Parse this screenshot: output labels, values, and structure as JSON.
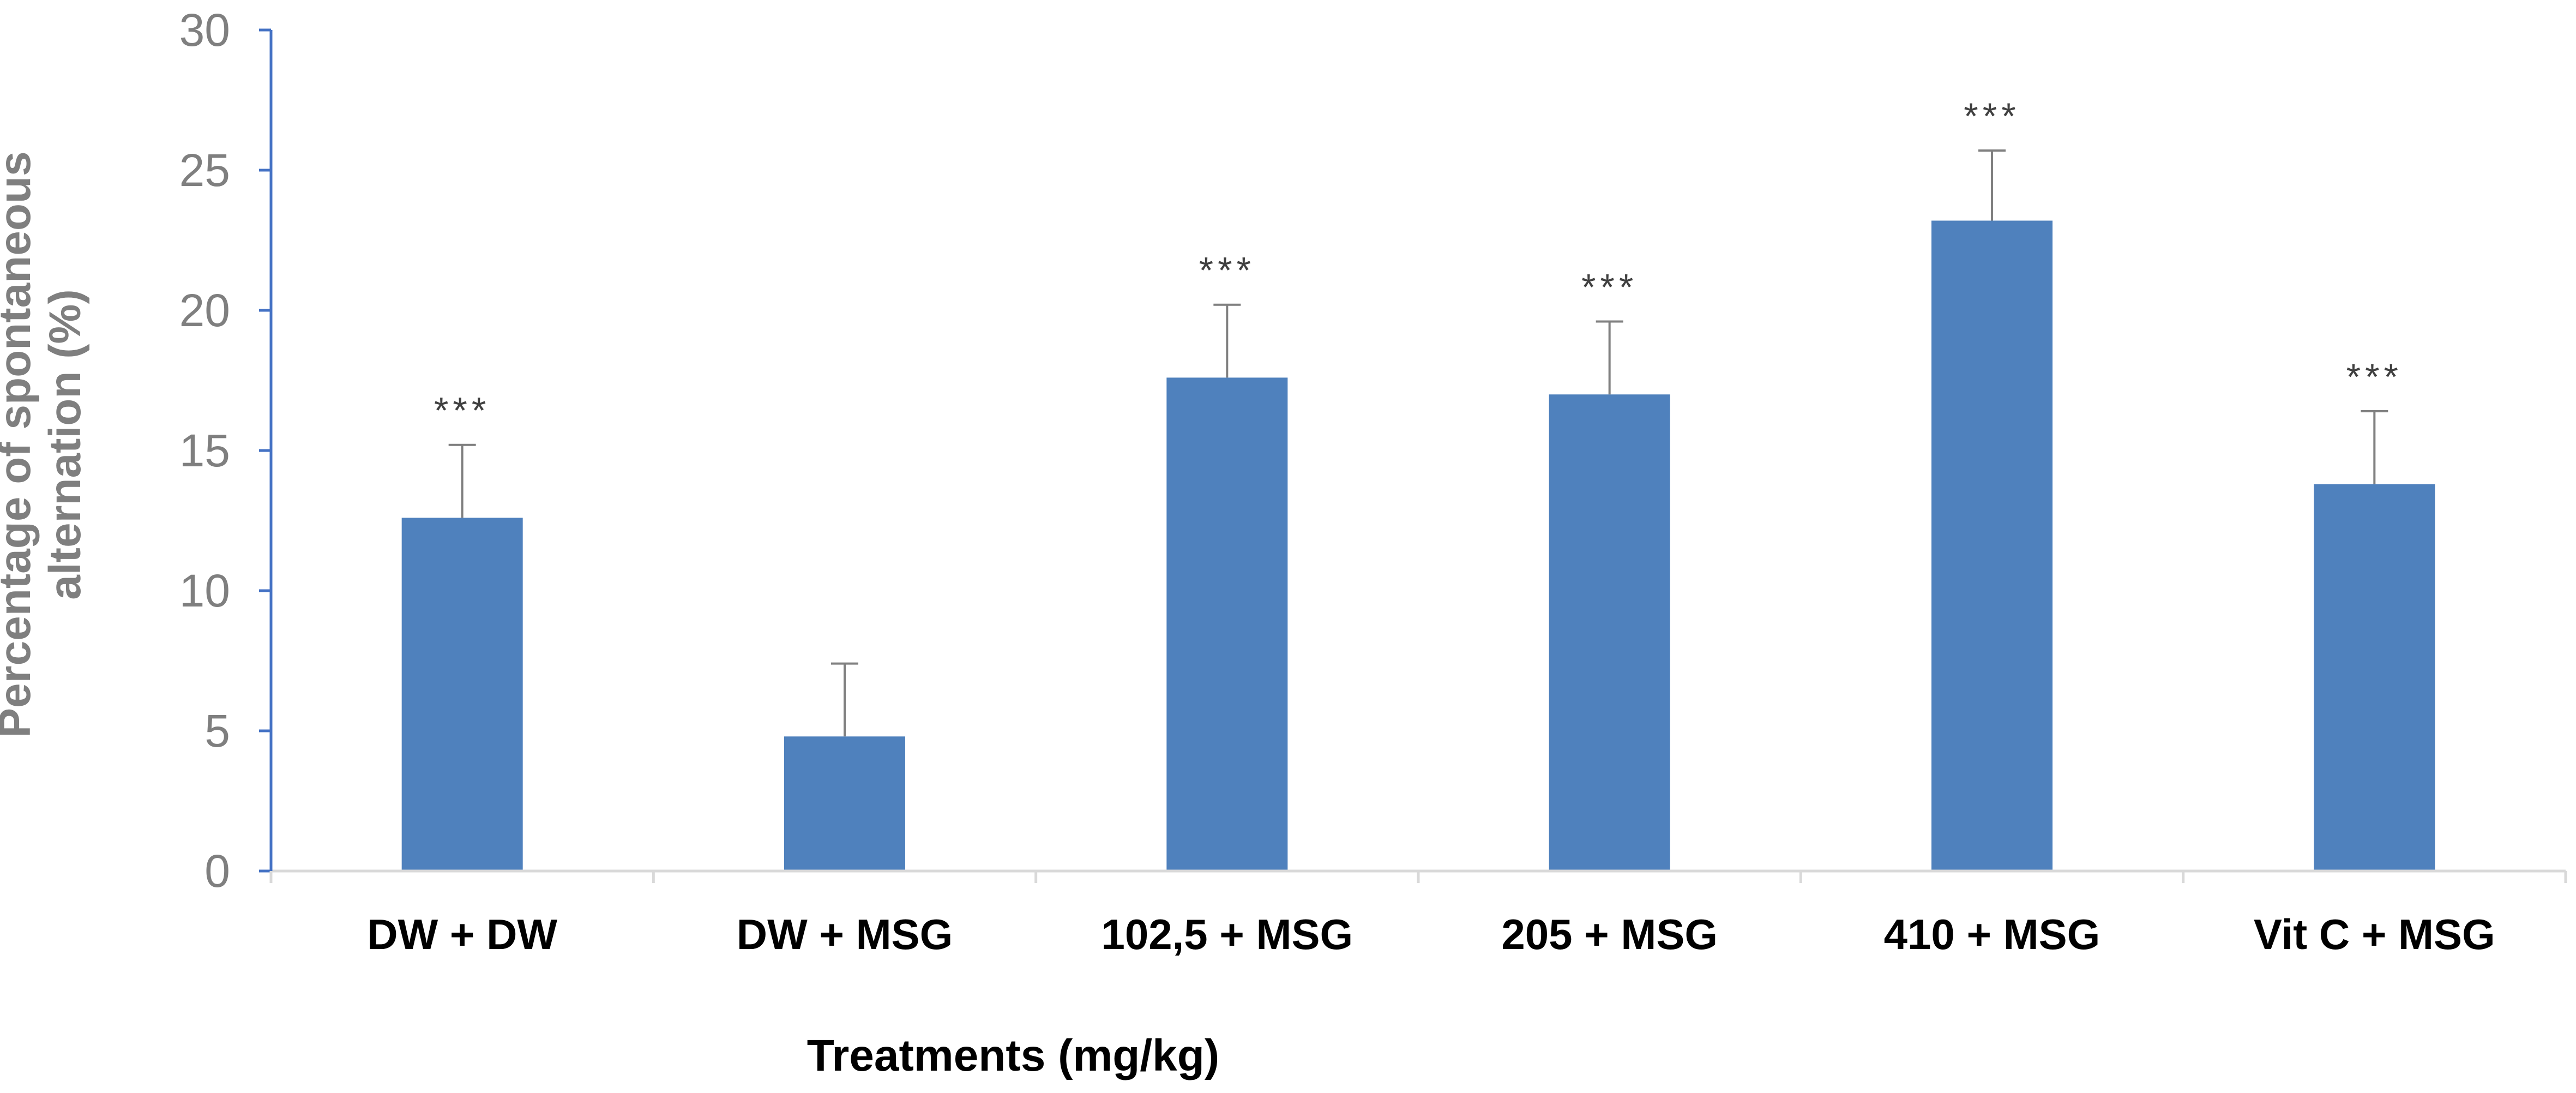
{
  "chart_data": {
    "type": "bar",
    "title": "",
    "xlabel": "Treatments (mg/kg)",
    "ylabel": "Percentage of spontaneous alternation (%)",
    "ylabel_lines": [
      "Percentage of spontaneous",
      "alternation (%)"
    ],
    "ylim": [
      0,
      30
    ],
    "yticks": [
      0,
      5,
      10,
      15,
      20,
      25,
      30
    ],
    "grid": false,
    "legend": "none",
    "categories": [
      "DW + DW",
      "DW + MSG",
      "102,5 + MSG",
      "205 + MSG",
      "410 + MSG",
      "Vit C + MSG"
    ],
    "values": [
      12.6,
      4.8,
      17.6,
      17.0,
      23.2,
      13.8
    ],
    "error_upper": [
      2.6,
      2.6,
      2.6,
      2.6,
      2.5,
      2.6
    ],
    "annotations": [
      "***",
      "",
      "***",
      "***",
      "***",
      "***"
    ],
    "colors": {
      "bar": "#4f81bd",
      "left_axis": "#4472c4",
      "bottom_axis": "#d9d9d9",
      "error_bar": "#808080",
      "tick_label": "#7f7f7f",
      "ylabel": "#7f7f7f",
      "xlabel": "#000000"
    }
  }
}
